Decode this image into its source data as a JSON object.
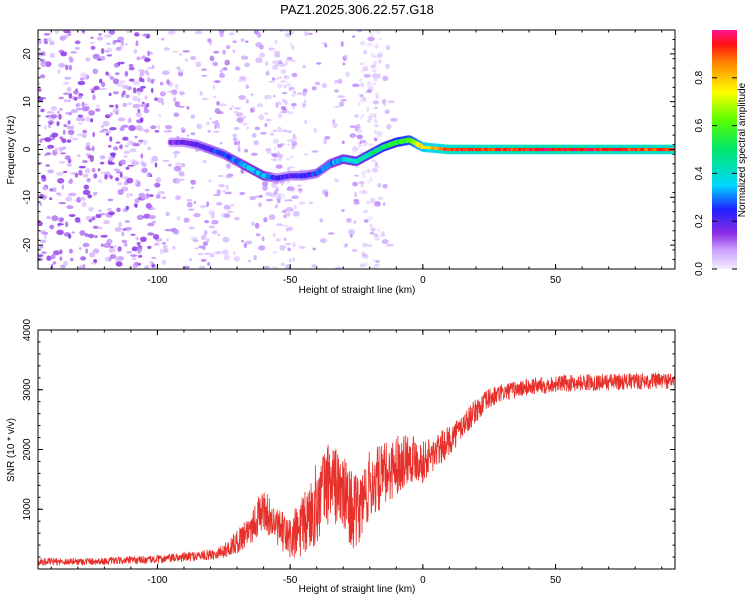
{
  "chart_data": [
    {
      "type": "heatmap",
      "title": "PAZ1.2025.306.22.57.G18",
      "xlabel": "Height of straight line (km)",
      "ylabel": "Frequency (Hz)",
      "xlim": [
        -145,
        95
      ],
      "ylim": [
        -25,
        25
      ],
      "xticks": [
        -100,
        -50,
        0,
        50
      ],
      "yticks": [
        -20,
        -10,
        0,
        10,
        20
      ],
      "colorbar": {
        "label": "Normalized spectral amplitude",
        "range": [
          0.0,
          1.0
        ],
        "ticks": [
          0.0,
          0.2,
          0.4,
          0.6,
          0.8
        ]
      },
      "ridge": {
        "description": "dominant frequency track vs height",
        "heights": [
          -95,
          -90,
          -85,
          -80,
          -75,
          -70,
          -65,
          -60,
          -55,
          -50,
          -45,
          -40,
          -35,
          -30,
          -25,
          -20,
          -15,
          -10,
          -5,
          0,
          10,
          30,
          50,
          70,
          95
        ],
        "freq_hz": [
          1.5,
          1.5,
          1,
          0,
          -1,
          -2.5,
          -4,
          -5.5,
          -6,
          -5.5,
          -5.5,
          -5,
          -3,
          -2,
          -2.5,
          -1,
          0.5,
          1.5,
          2,
          0.5,
          0,
          0,
          0,
          0,
          0
        ],
        "amplitude": [
          0.15,
          0.18,
          0.22,
          0.25,
          0.25,
          0.3,
          0.35,
          0.35,
          0.2,
          0.2,
          0.22,
          0.25,
          0.3,
          0.35,
          0.4,
          0.45,
          0.5,
          0.55,
          0.6,
          0.75,
          0.9,
          0.92,
          0.95,
          0.92,
          0.9
        ]
      }
    },
    {
      "type": "line",
      "title": "",
      "xlabel": "Height of straight line (km)",
      "ylabel": "SNR (10 * v/v)",
      "xlim": [
        -145,
        95
      ],
      "ylim": [
        0,
        4000
      ],
      "xticks": [
        -100,
        -50,
        0,
        50
      ],
      "yticks": [
        1000,
        2000,
        3000,
        4000
      ],
      "color": "#e8302a",
      "series": [
        {
          "name": "SNR",
          "x": [
            -145,
            -120,
            -100,
            -90,
            -80,
            -75,
            -70,
            -65,
            -60,
            -55,
            -50,
            -45,
            -40,
            -35,
            -30,
            -25,
            -20,
            -15,
            -10,
            -5,
            0,
            5,
            10,
            15,
            20,
            25,
            30,
            35,
            40,
            50,
            60,
            70,
            80,
            90,
            95
          ],
          "y": [
            120,
            130,
            160,
            200,
            240,
            300,
            450,
            700,
            1000,
            700,
            500,
            700,
            1100,
            1500,
            1250,
            900,
            1400,
            1550,
            1750,
            1900,
            1800,
            1950,
            2150,
            2400,
            2650,
            2850,
            2950,
            3000,
            3050,
            3100,
            3120,
            3130,
            3140,
            3150,
            3150
          ],
          "noise_amplitude": [
            60,
            60,
            70,
            80,
            90,
            120,
            200,
            300,
            350,
            300,
            400,
            550,
            700,
            700,
            650,
            650,
            600,
            550,
            500,
            450,
            350,
            300,
            250,
            220,
            200,
            180,
            150,
            150,
            150,
            140,
            140,
            140,
            140,
            140,
            140
          ]
        }
      ]
    }
  ]
}
